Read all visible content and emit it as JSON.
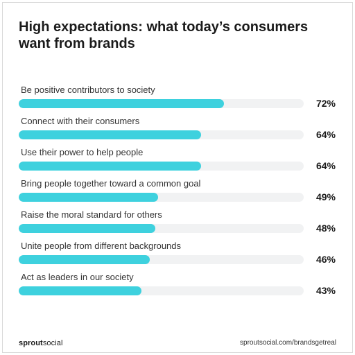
{
  "title": "High expectations: what today’s consumers want from brands",
  "footer": {
    "logo_bold": "sprout",
    "logo_light": "social",
    "url": "sproutsocial.com/brandsgetreal"
  },
  "colors": {
    "bar": "#3ed1de",
    "track": "#f1f2f3"
  },
  "chart_data": {
    "type": "bar",
    "orientation": "horizontal",
    "title": "High expectations: what today’s consumers want from brands",
    "xlim": [
      0,
      100
    ],
    "unit": "%",
    "categories": [
      "Be positive contributors to society",
      "Connect with their consumers",
      "Use their power to help people",
      "Bring people together toward a common goal",
      "Raise the moral standard for others",
      "Unite people from different backgrounds",
      "Act as leaders in our society"
    ],
    "values": [
      72,
      64,
      64,
      49,
      48,
      46,
      43
    ],
    "value_labels": [
      "72%",
      "64%",
      "64%",
      "49%",
      "48%",
      "46%",
      "43%"
    ]
  }
}
